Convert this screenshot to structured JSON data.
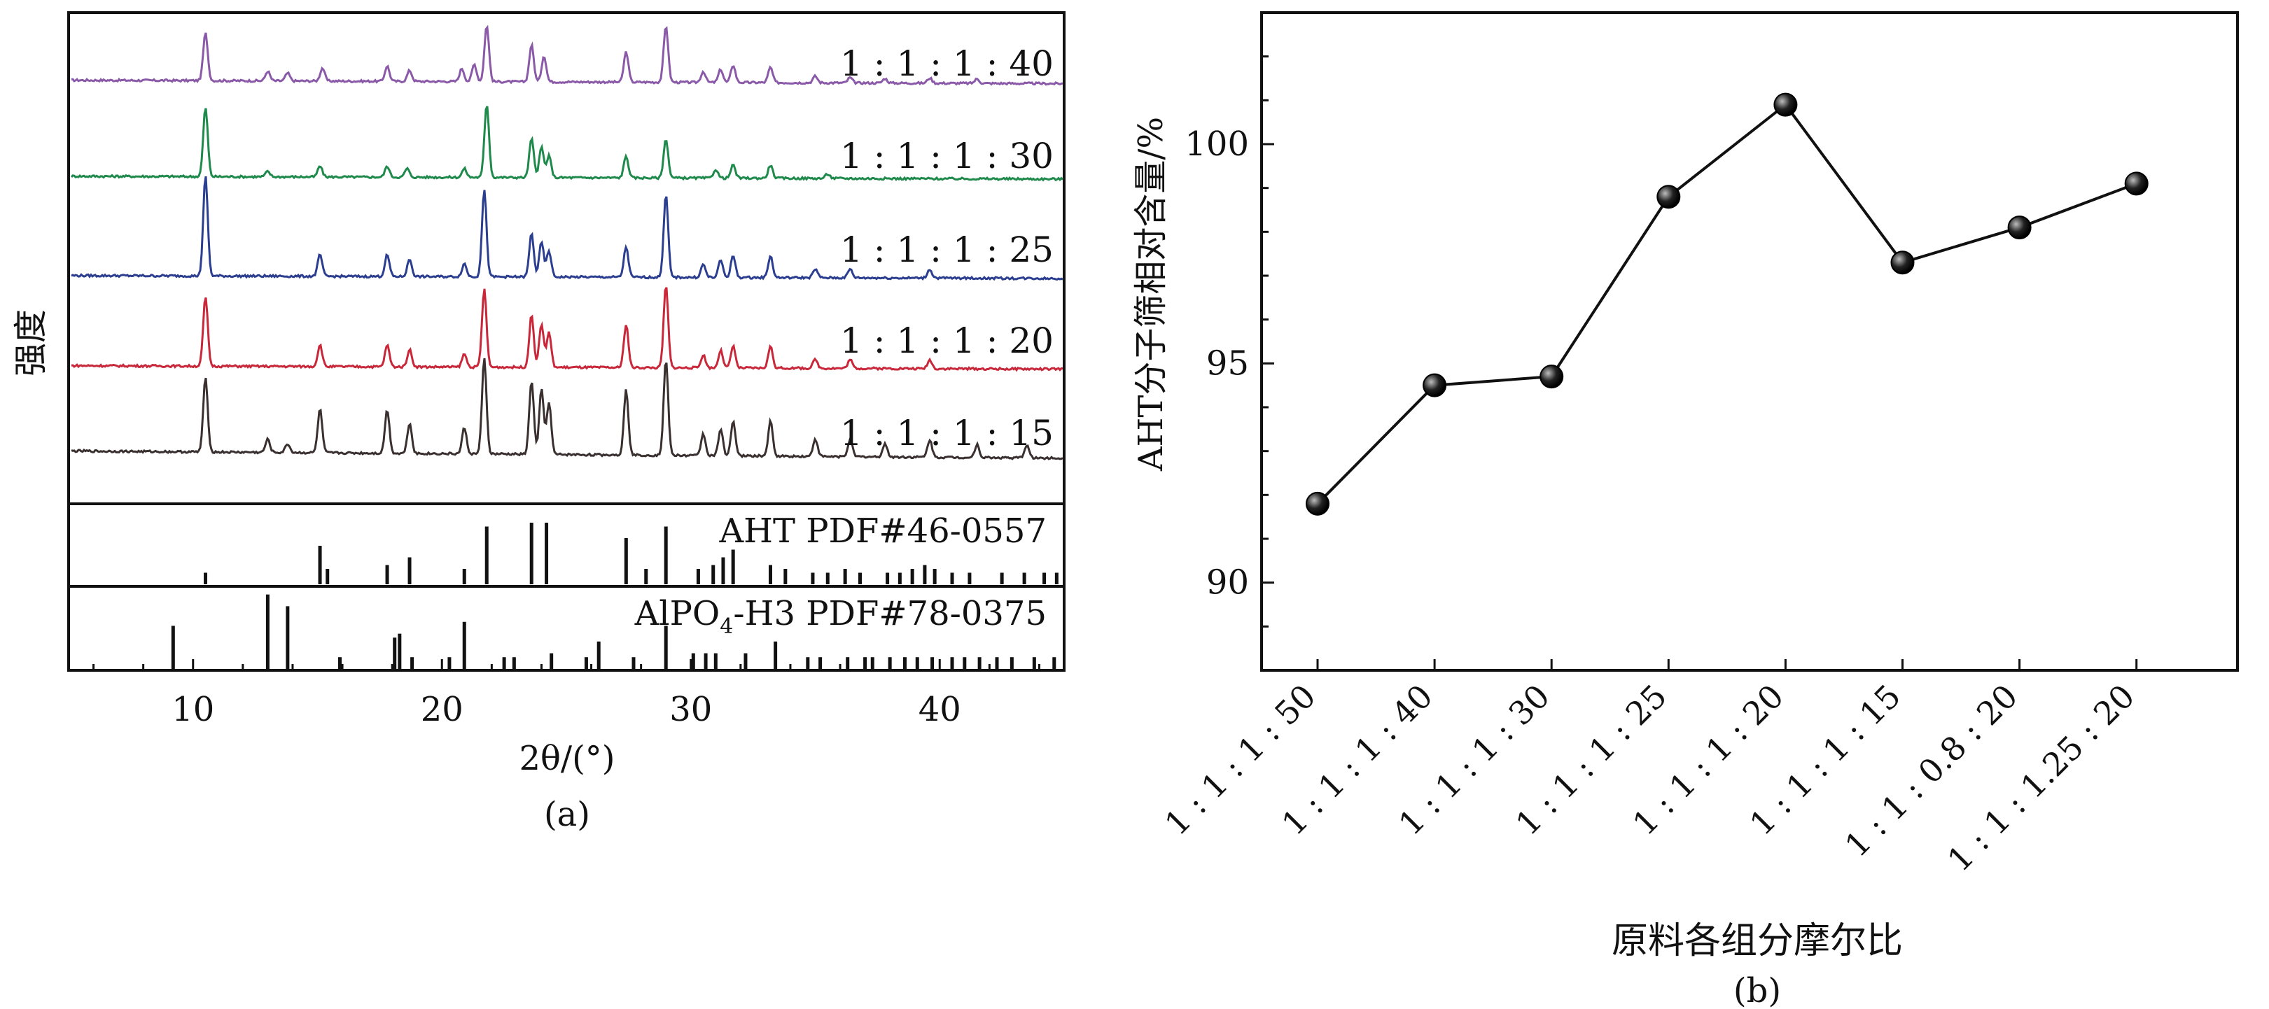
{
  "chart_data": [
    {
      "panel": "(a)",
      "type": "line",
      "xlabel": "2θ/(°)",
      "ylabel": "强度",
      "xlim": [
        5,
        45
      ],
      "xticks": [
        10,
        20,
        30,
        40
      ],
      "series": [
        {
          "name": "1 : 1 : 1 : 40",
          "color": "#8a5aa8",
          "baseline": 0.12,
          "peaks": [
            [
              10.5,
              1.1
            ],
            [
              13.0,
              0.22
            ],
            [
              13.8,
              0.18
            ],
            [
              15.2,
              0.3
            ],
            [
              17.8,
              0.35
            ],
            [
              18.7,
              0.25
            ],
            [
              20.8,
              0.3
            ],
            [
              21.3,
              0.4
            ],
            [
              21.8,
              1.3
            ],
            [
              23.6,
              0.85
            ],
            [
              24.1,
              0.6
            ],
            [
              27.4,
              0.7
            ],
            [
              29.0,
              1.3
            ],
            [
              30.5,
              0.25
            ],
            [
              31.2,
              0.3
            ],
            [
              31.7,
              0.4
            ],
            [
              33.2,
              0.35
            ],
            [
              35.0,
              0.15
            ],
            [
              36.4,
              0.12
            ],
            [
              37.8,
              0.1
            ],
            [
              39.6,
              0.12
            ],
            [
              41.5,
              0.1
            ]
          ]
        },
        {
          "name": "1 : 1 : 1 : 30",
          "color": "#1f8a4c",
          "baseline": 0.1,
          "peaks": [
            [
              10.5,
              1.6
            ],
            [
              13.0,
              0.12
            ],
            [
              15.1,
              0.25
            ],
            [
              17.8,
              0.25
            ],
            [
              18.6,
              0.2
            ],
            [
              20.9,
              0.2
            ],
            [
              21.8,
              1.7
            ],
            [
              23.6,
              0.9
            ],
            [
              24.0,
              0.7
            ],
            [
              24.3,
              0.5
            ],
            [
              27.4,
              0.5
            ],
            [
              29.0,
              0.9
            ],
            [
              31.0,
              0.2
            ],
            [
              31.7,
              0.3
            ],
            [
              33.2,
              0.3
            ],
            [
              35.5,
              0.1
            ]
          ]
        },
        {
          "name": "1 : 1 : 1 : 25",
          "color": "#2c3e8f",
          "baseline": 0.1,
          "peaks": [
            [
              10.5,
              2.3
            ],
            [
              15.1,
              0.5
            ],
            [
              17.8,
              0.5
            ],
            [
              18.7,
              0.4
            ],
            [
              20.9,
              0.3
            ],
            [
              21.7,
              2.0
            ],
            [
              23.6,
              1.0
            ],
            [
              24.0,
              0.8
            ],
            [
              24.3,
              0.6
            ],
            [
              27.4,
              0.7
            ],
            [
              29.0,
              1.9
            ],
            [
              30.5,
              0.3
            ],
            [
              31.2,
              0.4
            ],
            [
              31.7,
              0.5
            ],
            [
              33.2,
              0.5
            ],
            [
              35.0,
              0.2
            ],
            [
              36.4,
              0.2
            ],
            [
              39.6,
              0.2
            ]
          ]
        },
        {
          "name": "1 : 1 : 1 : 20",
          "color": "#c8283a",
          "baseline": 0.12,
          "peaks": [
            [
              10.5,
              1.6
            ],
            [
              15.1,
              0.5
            ],
            [
              17.8,
              0.5
            ],
            [
              18.7,
              0.4
            ],
            [
              20.9,
              0.3
            ],
            [
              21.7,
              1.8
            ],
            [
              23.6,
              1.2
            ],
            [
              24.0,
              1.0
            ],
            [
              24.3,
              0.8
            ],
            [
              27.4,
              1.0
            ],
            [
              29.0,
              1.9
            ],
            [
              30.5,
              0.3
            ],
            [
              31.2,
              0.4
            ],
            [
              31.7,
              0.5
            ],
            [
              33.2,
              0.5
            ],
            [
              35.0,
              0.2
            ],
            [
              36.4,
              0.2
            ],
            [
              39.6,
              0.2
            ]
          ]
        },
        {
          "name": "1 : 1 : 1 : 15",
          "color": "#3a3030",
          "baseline": 0.25,
          "peaks": [
            [
              10.5,
              1.7
            ],
            [
              13.0,
              0.3
            ],
            [
              13.8,
              0.2
            ],
            [
              15.1,
              1.0
            ],
            [
              17.8,
              1.0
            ],
            [
              18.7,
              0.7
            ],
            [
              20.9,
              0.6
            ],
            [
              21.7,
              2.2
            ],
            [
              23.6,
              1.7
            ],
            [
              24.0,
              1.5
            ],
            [
              24.3,
              1.2
            ],
            [
              27.4,
              1.5
            ],
            [
              29.0,
              2.2
            ],
            [
              30.5,
              0.5
            ],
            [
              31.2,
              0.6
            ],
            [
              31.7,
              0.8
            ],
            [
              33.2,
              0.8
            ],
            [
              35.0,
              0.4
            ],
            [
              36.4,
              0.4
            ],
            [
              37.8,
              0.3
            ],
            [
              39.6,
              0.4
            ],
            [
              41.5,
              0.3
            ],
            [
              43.5,
              0.3
            ]
          ]
        }
      ],
      "references": [
        {
          "label": "AHT PDF#46-0557",
          "sticks": [
            [
              10.5,
              0.15
            ],
            [
              15.1,
              0.5
            ],
            [
              15.4,
              0.2
            ],
            [
              17.8,
              0.25
            ],
            [
              18.7,
              0.35
            ],
            [
              20.9,
              0.2
            ],
            [
              21.8,
              0.75
            ],
            [
              23.6,
              0.8
            ],
            [
              24.2,
              0.8
            ],
            [
              27.4,
              0.6
            ],
            [
              28.2,
              0.2
            ],
            [
              29.0,
              0.75
            ],
            [
              30.3,
              0.2
            ],
            [
              30.9,
              0.25
            ],
            [
              31.3,
              0.35
            ],
            [
              31.7,
              0.45
            ],
            [
              33.2,
              0.25
            ],
            [
              33.8,
              0.2
            ],
            [
              34.9,
              0.15
            ],
            [
              35.5,
              0.15
            ],
            [
              36.2,
              0.2
            ],
            [
              36.8,
              0.15
            ],
            [
              37.9,
              0.15
            ],
            [
              38.4,
              0.15
            ],
            [
              38.9,
              0.2
            ],
            [
              39.4,
              0.25
            ],
            [
              39.8,
              0.2
            ],
            [
              40.5,
              0.15
            ],
            [
              41.2,
              0.15
            ],
            [
              42.5,
              0.15
            ],
            [
              43.4,
              0.15
            ],
            [
              44.2,
              0.15
            ],
            [
              44.7,
              0.15
            ]
          ]
        },
        {
          "label_prefix": "AlPO",
          "label_sub": "4",
          "label_suffix": "-H3 PDF#78-0375",
          "sticks": [
            [
              9.2,
              0.55
            ],
            [
              13.0,
              0.95
            ],
            [
              13.8,
              0.8
            ],
            [
              15.9,
              0.15
            ],
            [
              18.1,
              0.4
            ],
            [
              18.3,
              0.45
            ],
            [
              18.8,
              0.15
            ],
            [
              20.3,
              0.15
            ],
            [
              20.9,
              0.6
            ],
            [
              22.5,
              0.15
            ],
            [
              22.9,
              0.15
            ],
            [
              24.4,
              0.2
            ],
            [
              25.8,
              0.15
            ],
            [
              26.3,
              0.35
            ],
            [
              27.7,
              0.15
            ],
            [
              29.0,
              0.55
            ],
            [
              30.1,
              0.2
            ],
            [
              30.6,
              0.2
            ],
            [
              31.0,
              0.2
            ],
            [
              32.2,
              0.2
            ],
            [
              33.4,
              0.35
            ],
            [
              34.7,
              0.15
            ],
            [
              35.2,
              0.15
            ],
            [
              36.3,
              0.15
            ],
            [
              37.0,
              0.15
            ],
            [
              37.3,
              0.15
            ],
            [
              38.0,
              0.15
            ],
            [
              38.6,
              0.15
            ],
            [
              39.1,
              0.15
            ],
            [
              39.7,
              0.15
            ],
            [
              40.5,
              0.15
            ],
            [
              41.0,
              0.15
            ],
            [
              41.6,
              0.15
            ],
            [
              42.3,
              0.15
            ],
            [
              42.9,
              0.15
            ],
            [
              43.8,
              0.15
            ],
            [
              44.6,
              0.15
            ]
          ]
        }
      ]
    },
    {
      "panel": "(b)",
      "type": "line",
      "xlabel": "原料各组分摩尔比",
      "ylabel": "AHT分子筛相对含量/%",
      "ylim": [
        88,
        103
      ],
      "yticks": [
        90,
        95,
        100
      ],
      "categories": [
        "1 : 1 : 1 : 50",
        "1 : 1 : 1 : 40",
        "1 : 1 : 1 : 30",
        "1 : 1 : 1 : 25",
        "1 : 1 : 1 : 20",
        "1 : 1 : 1 : 15",
        "1 : 1 : 0.8 : 20",
        "1 : 1 : 1.25 : 20"
      ],
      "values": [
        91.8,
        94.5,
        94.7,
        98.8,
        100.9,
        97.3,
        98.1,
        99.1
      ]
    }
  ]
}
